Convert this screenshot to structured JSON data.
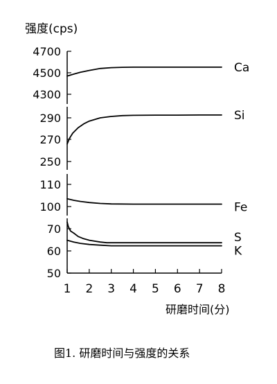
{
  "chart_data": {
    "type": "line",
    "title": "",
    "ylabel": "强度(cps)",
    "xlabel": "研磨时间(分)",
    "caption": "图1. 研磨时间与强度的关系",
    "grid": false,
    "x_ticks": [
      "1",
      "2",
      "3",
      "4",
      "5",
      "6",
      "7",
      "8"
    ],
    "xlim": [
      1,
      8
    ],
    "y_ticks": [
      "4700",
      "4500",
      "4300",
      "290",
      "270",
      "250",
      "110",
      "100",
      "70",
      "60",
      "50"
    ],
    "y_axis_breaks": true,
    "series": [
      {
        "name": "Ca",
        "points": [
          [
            1,
            4470
          ],
          [
            1.3,
            4488
          ],
          [
            1.6,
            4505
          ],
          [
            2,
            4522
          ],
          [
            2.5,
            4540
          ],
          [
            3,
            4548
          ],
          [
            3.5,
            4551
          ],
          [
            4,
            4552
          ],
          [
            5,
            4552
          ],
          [
            6,
            4552
          ],
          [
            7,
            4552
          ],
          [
            8,
            4552
          ]
        ]
      },
      {
        "name": "Si",
        "points": [
          [
            1,
            266
          ],
          [
            1.1,
            271
          ],
          [
            1.25,
            276
          ],
          [
            1.5,
            281
          ],
          [
            1.75,
            284.5
          ],
          [
            2,
            287
          ],
          [
            2.5,
            290
          ],
          [
            3,
            291.3
          ],
          [
            3.5,
            292
          ],
          [
            4,
            292.3
          ],
          [
            5,
            292.5
          ],
          [
            6,
            292.5
          ],
          [
            7,
            292.6
          ],
          [
            8,
            292.6
          ]
        ]
      },
      {
        "name": "Fe",
        "points": [
          [
            1,
            103.5
          ],
          [
            1.3,
            102.8
          ],
          [
            1.6,
            102.3
          ],
          [
            2,
            101.8
          ],
          [
            2.5,
            101.4
          ],
          [
            3,
            101.2
          ],
          [
            4,
            101.1
          ],
          [
            5,
            101.1
          ],
          [
            6,
            101.1
          ],
          [
            7,
            101.1
          ],
          [
            8,
            101.1
          ]
        ]
      },
      {
        "name": "S",
        "points": [
          [
            1,
            73
          ],
          [
            1.05,
            71
          ],
          [
            1.15,
            69
          ],
          [
            1.3,
            68
          ],
          [
            1.5,
            66.5
          ],
          [
            1.75,
            65.5
          ],
          [
            2,
            64.8
          ],
          [
            2.5,
            64
          ],
          [
            2.8,
            63.7
          ],
          [
            3,
            63.7
          ],
          [
            4,
            63.7
          ],
          [
            5,
            63.7
          ],
          [
            6,
            63.7
          ],
          [
            7,
            63.7
          ],
          [
            8,
            63.7
          ]
        ]
      },
      {
        "name": "K",
        "points": [
          [
            1,
            64.8
          ],
          [
            1.3,
            64.0
          ],
          [
            1.6,
            63.4
          ],
          [
            2,
            62.9
          ],
          [
            2.5,
            62.6
          ],
          [
            3,
            62.3
          ],
          [
            3.5,
            62.3
          ],
          [
            4,
            62.3
          ],
          [
            5,
            62.3
          ],
          [
            6,
            62.3
          ],
          [
            7,
            62.3
          ],
          [
            8,
            62.3
          ]
        ]
      }
    ]
  }
}
